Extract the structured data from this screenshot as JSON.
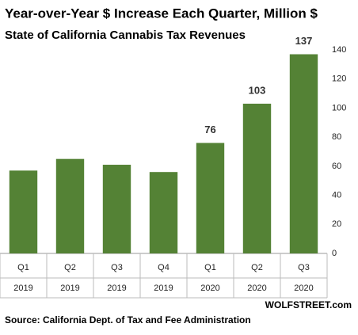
{
  "chart_data": {
    "type": "bar",
    "title": "Year-over-Year  $ Increase Each Quarter,  Million $",
    "subtitle": "State of California Cannabis Tax Revenues",
    "categories": [
      "Q1",
      "Q2",
      "Q3",
      "Q4",
      "Q1",
      "Q2",
      "Q3"
    ],
    "years": [
      "2019",
      "2019",
      "2019",
      "2019",
      "2020",
      "2020",
      "2020"
    ],
    "values": [
      57,
      65,
      61,
      56,
      76,
      103,
      137
    ],
    "value_labels": [
      null,
      null,
      null,
      null,
      "76",
      "103",
      "137"
    ],
    "color": "#548235",
    "ylim": [
      0,
      140
    ],
    "yticks": [
      0,
      20,
      40,
      60,
      80,
      100,
      120,
      140
    ],
    "axis_side": "right",
    "watermark": "WOLFSTREET.com",
    "source": "Source: California Dept. of Tax and Fee Administration"
  }
}
